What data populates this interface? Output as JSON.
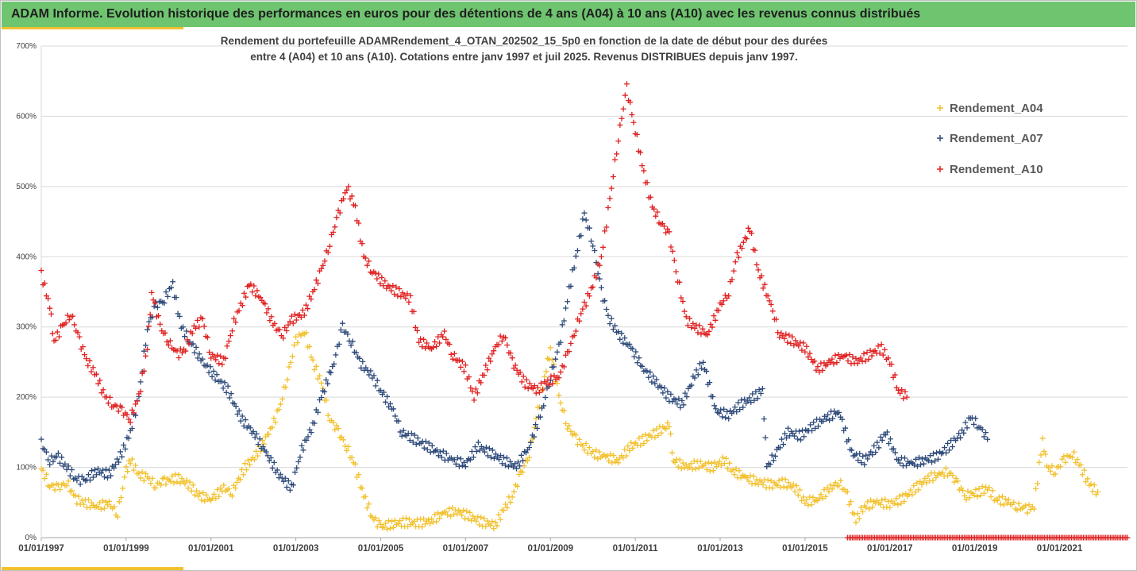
{
  "header": {
    "title": "ADAM Informe. Evolution historique des performances en euros pour des détentions de 4 ans (A04) à 10 ans (A10) avec les revenus connus distribués"
  },
  "chart_data": {
    "type": "scatter",
    "title_line1": "Rendement du portefeuille ADAMRendement_4_OTAN_202502_15_5p0  en fonction de la date de début pour des durées",
    "title_line2": "entre 4 (A04) et 10 ans (A10). Cotations entre janv 1997 et juil 2025. Revenus DISTRIBUES depuis janv 1997.",
    "y_ticks": [
      "0%",
      "100%",
      "200%",
      "300%",
      "400%",
      "500%",
      "600%",
      "700%"
    ],
    "ylim": [
      0,
      700
    ],
    "x_ticks": [
      "01/01/1997",
      "01/01/1999",
      "01/01/2001",
      "01/01/2003",
      "01/01/2005",
      "01/01/2007",
      "01/01/2009",
      "01/01/2011",
      "01/01/2013",
      "01/01/2015",
      "01/01/2017",
      "01/01/2019",
      "01/01/2021"
    ],
    "xlim": [
      1997.0,
      2022.6
    ],
    "grid": "horizontal",
    "legend_position": "top-right",
    "series": [
      {
        "name": "Rendement_A04",
        "color": "#f2c12e",
        "points": [
          [
            1997.0,
            98
          ],
          [
            1997.2,
            75
          ],
          [
            1997.4,
            70
          ],
          [
            1997.6,
            80
          ],
          [
            1997.8,
            55
          ],
          [
            1998.0,
            50
          ],
          [
            1998.3,
            45
          ],
          [
            1998.6,
            48
          ],
          [
            1998.8,
            35
          ],
          [
            1999.0,
            95
          ],
          [
            1999.1,
            110
          ],
          [
            1999.3,
            90
          ],
          [
            1999.5,
            85
          ],
          [
            1999.7,
            75
          ],
          [
            1999.9,
            80
          ],
          [
            2000.2,
            85
          ],
          [
            2000.5,
            75
          ],
          [
            2000.7,
            60
          ],
          [
            2001.0,
            55
          ],
          [
            2001.3,
            70
          ],
          [
            2001.5,
            65
          ],
          [
            2001.8,
            100
          ],
          [
            2002.1,
            120
          ],
          [
            2002.4,
            155
          ],
          [
            2002.6,
            180
          ],
          [
            2002.8,
            230
          ],
          [
            2003.0,
            280
          ],
          [
            2003.2,
            295
          ],
          [
            2003.4,
            250
          ],
          [
            2003.6,
            220
          ],
          [
            2003.8,
            170
          ],
          [
            2004.0,
            150
          ],
          [
            2004.2,
            130
          ],
          [
            2004.4,
            100
          ],
          [
            2004.6,
            60
          ],
          [
            2004.8,
            30
          ],
          [
            2005.0,
            15
          ],
          [
            2005.3,
            20
          ],
          [
            2005.6,
            22
          ],
          [
            2005.9,
            20
          ],
          [
            2006.2,
            25
          ],
          [
            2006.5,
            35
          ],
          [
            2006.8,
            38
          ],
          [
            2007.1,
            30
          ],
          [
            2007.4,
            22
          ],
          [
            2007.7,
            18
          ],
          [
            2007.9,
            40
          ],
          [
            2008.1,
            60
          ],
          [
            2008.3,
            90
          ],
          [
            2008.5,
            120
          ],
          [
            2008.7,
            180
          ],
          [
            2008.9,
            240
          ],
          [
            2009.0,
            270
          ],
          [
            2009.2,
            200
          ],
          [
            2009.4,
            160
          ],
          [
            2009.6,
            140
          ],
          [
            2009.8,
            130
          ],
          [
            2010.0,
            120
          ],
          [
            2010.3,
            115
          ],
          [
            2010.6,
            110
          ],
          [
            2010.9,
            130
          ],
          [
            2011.2,
            140
          ],
          [
            2011.5,
            150
          ],
          [
            2011.8,
            160
          ],
          [
            2011.9,
            110
          ],
          [
            2012.2,
            100
          ],
          [
            2012.5,
            105
          ],
          [
            2012.8,
            100
          ],
          [
            2013.1,
            110
          ],
          [
            2013.3,
            95
          ],
          [
            2013.6,
            85
          ],
          [
            2013.9,
            80
          ],
          [
            2014.2,
            75
          ],
          [
            2014.5,
            78
          ],
          [
            2014.8,
            70
          ],
          [
            2015.0,
            50
          ],
          [
            2015.3,
            55
          ],
          [
            2015.6,
            70
          ],
          [
            2015.8,
            80
          ],
          [
            2016.0,
            60
          ],
          [
            2016.2,
            25
          ],
          [
            2016.4,
            45
          ],
          [
            2016.7,
            50
          ],
          [
            2017.0,
            48
          ],
          [
            2017.3,
            55
          ],
          [
            2017.6,
            70
          ],
          [
            2017.9,
            85
          ],
          [
            2018.2,
            90
          ],
          [
            2018.4,
            95
          ],
          [
            2018.6,
            75
          ],
          [
            2018.8,
            60
          ],
          [
            2019.1,
            65
          ],
          [
            2019.3,
            70
          ],
          [
            2019.5,
            55
          ],
          [
            2019.8,
            50
          ],
          [
            2020.0,
            45
          ],
          [
            2020.2,
            40
          ],
          [
            2020.4,
            45
          ],
          [
            2020.6,
            140
          ],
          [
            2020.7,
            100
          ],
          [
            2020.9,
            95
          ],
          [
            2021.1,
            110
          ],
          [
            2021.3,
            120
          ],
          [
            2021.5,
            100
          ],
          [
            2021.7,
            75
          ],
          [
            2021.9,
            65
          ]
        ]
      },
      {
        "name": "Rendement_A07",
        "color": "#2e4a7a",
        "points": [
          [
            1997.0,
            135
          ],
          [
            1997.2,
            110
          ],
          [
            1997.4,
            115
          ],
          [
            1997.6,
            100
          ],
          [
            1997.8,
            85
          ],
          [
            1998.0,
            80
          ],
          [
            1998.3,
            95
          ],
          [
            1998.6,
            90
          ],
          [
            1998.9,
            120
          ],
          [
            1999.1,
            150
          ],
          [
            1999.3,
            200
          ],
          [
            1999.5,
            300
          ],
          [
            1999.7,
            330
          ],
          [
            1999.9,
            340
          ],
          [
            2000.1,
            360
          ],
          [
            2000.3,
            300
          ],
          [
            2000.5,
            280
          ],
          [
            2000.8,
            250
          ],
          [
            2001.1,
            230
          ],
          [
            2001.4,
            210
          ],
          [
            2001.7,
            170
          ],
          [
            2002.0,
            150
          ],
          [
            2002.3,
            120
          ],
          [
            2002.6,
            90
          ],
          [
            2002.9,
            70
          ],
          [
            2003.1,
            120
          ],
          [
            2003.4,
            160
          ],
          [
            2003.6,
            200
          ],
          [
            2003.9,
            250
          ],
          [
            2004.1,
            300
          ],
          [
            2004.3,
            280
          ],
          [
            2004.5,
            250
          ],
          [
            2004.8,
            230
          ],
          [
            2005.0,
            210
          ],
          [
            2005.3,
            180
          ],
          [
            2005.5,
            150
          ],
          [
            2005.8,
            140
          ],
          [
            2006.1,
            130
          ],
          [
            2006.4,
            120
          ],
          [
            2006.7,
            110
          ],
          [
            2007.0,
            105
          ],
          [
            2007.3,
            130
          ],
          [
            2007.6,
            120
          ],
          [
            2007.9,
            110
          ],
          [
            2008.2,
            100
          ],
          [
            2008.5,
            130
          ],
          [
            2008.8,
            180
          ],
          [
            2009.0,
            230
          ],
          [
            2009.2,
            270
          ],
          [
            2009.4,
            340
          ],
          [
            2009.6,
            400
          ],
          [
            2009.8,
            460
          ],
          [
            2010.0,
            420
          ],
          [
            2010.2,
            350
          ],
          [
            2010.4,
            310
          ],
          [
            2010.6,
            290
          ],
          [
            2010.9,
            270
          ],
          [
            2011.2,
            240
          ],
          [
            2011.5,
            220
          ],
          [
            2011.8,
            200
          ],
          [
            2012.1,
            190
          ],
          [
            2012.4,
            230
          ],
          [
            2012.6,
            250
          ],
          [
            2012.9,
            180
          ],
          [
            2013.2,
            175
          ],
          [
            2013.5,
            190
          ],
          [
            2013.8,
            200
          ],
          [
            2014.0,
            210
          ],
          [
            2014.1,
            100
          ],
          [
            2014.3,
            120
          ],
          [
            2014.6,
            150
          ],
          [
            2014.9,
            145
          ],
          [
            2015.2,
            160
          ],
          [
            2015.5,
            170
          ],
          [
            2015.8,
            180
          ],
          [
            2016.1,
            120
          ],
          [
            2016.4,
            110
          ],
          [
            2016.7,
            130
          ],
          [
            2016.9,
            150
          ],
          [
            2017.2,
            110
          ],
          [
            2017.5,
            105
          ],
          [
            2017.8,
            110
          ],
          [
            2018.1,
            115
          ],
          [
            2018.4,
            130
          ],
          [
            2018.7,
            150
          ],
          [
            2018.9,
            170
          ],
          [
            2019.1,
            160
          ],
          [
            2019.3,
            140
          ]
        ]
      },
      {
        "name": "Rendement_A10",
        "color": "#e02020",
        "points": [
          [
            1997.0,
            375
          ],
          [
            1997.2,
            330
          ],
          [
            1997.3,
            280
          ],
          [
            1997.5,
            300
          ],
          [
            1997.7,
            320
          ],
          [
            1997.9,
            280
          ],
          [
            1998.1,
            250
          ],
          [
            1998.3,
            230
          ],
          [
            1998.5,
            200
          ],
          [
            1998.7,
            190
          ],
          [
            1998.9,
            180
          ],
          [
            1999.1,
            170
          ],
          [
            1999.3,
            200
          ],
          [
            1999.5,
            270
          ],
          [
            1999.6,
            350
          ],
          [
            1999.8,
            300
          ],
          [
            2000.0,
            280
          ],
          [
            2000.2,
            260
          ],
          [
            2000.4,
            270
          ],
          [
            2000.6,
            300
          ],
          [
            2000.8,
            310
          ],
          [
            2001.0,
            260
          ],
          [
            2001.3,
            250
          ],
          [
            2001.5,
            300
          ],
          [
            2001.7,
            330
          ],
          [
            2001.9,
            360
          ],
          [
            2002.2,
            340
          ],
          [
            2002.5,
            300
          ],
          [
            2002.7,
            290
          ],
          [
            2002.9,
            310
          ],
          [
            2003.2,
            320
          ],
          [
            2003.4,
            350
          ],
          [
            2003.6,
            380
          ],
          [
            2003.8,
            420
          ],
          [
            2004.0,
            460
          ],
          [
            2004.2,
            500
          ],
          [
            2004.4,
            470
          ],
          [
            2004.6,
            400
          ],
          [
            2004.8,
            380
          ],
          [
            2005.1,
            360
          ],
          [
            2005.4,
            350
          ],
          [
            2005.7,
            340
          ],
          [
            2005.9,
            280
          ],
          [
            2006.2,
            270
          ],
          [
            2006.5,
            290
          ],
          [
            2006.7,
            260
          ],
          [
            2007.0,
            240
          ],
          [
            2007.2,
            200
          ],
          [
            2007.4,
            230
          ],
          [
            2007.7,
            270
          ],
          [
            2007.9,
            290
          ],
          [
            2008.1,
            250
          ],
          [
            2008.4,
            220
          ],
          [
            2008.7,
            210
          ],
          [
            2008.9,
            220
          ],
          [
            2009.2,
            230
          ],
          [
            2009.4,
            260
          ],
          [
            2009.6,
            300
          ],
          [
            2009.8,
            330
          ],
          [
            2010.0,
            360
          ],
          [
            2010.2,
            400
          ],
          [
            2010.4,
            480
          ],
          [
            2010.6,
            570
          ],
          [
            2010.8,
            640
          ],
          [
            2011.0,
            580
          ],
          [
            2011.2,
            520
          ],
          [
            2011.4,
            470
          ],
          [
            2011.6,
            450
          ],
          [
            2011.8,
            430
          ],
          [
            2012.0,
            370
          ],
          [
            2012.2,
            310
          ],
          [
            2012.4,
            300
          ],
          [
            2012.7,
            290
          ],
          [
            2013.0,
            330
          ],
          [
            2013.2,
            350
          ],
          [
            2013.4,
            400
          ],
          [
            2013.7,
            440
          ],
          [
            2013.9,
            380
          ],
          [
            2014.2,
            330
          ],
          [
            2014.4,
            290
          ],
          [
            2014.7,
            280
          ],
          [
            2015.0,
            270
          ],
          [
            2015.3,
            240
          ],
          [
            2015.6,
            250
          ],
          [
            2015.9,
            260
          ],
          [
            2016.2,
            250
          ],
          [
            2016.5,
            260
          ],
          [
            2016.8,
            270
          ],
          [
            2017.0,
            250
          ],
          [
            2017.2,
            210
          ],
          [
            2017.4,
            200
          ]
        ]
      },
      {
        "name": "zero_band",
        "color": "#e02020",
        "x_range": [
          2016.0,
          2022.6
        ],
        "value": 0
      }
    ]
  }
}
